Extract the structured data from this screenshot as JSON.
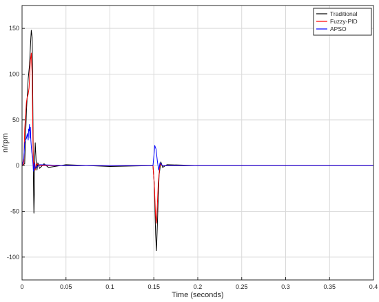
{
  "chart_data": {
    "type": "line",
    "title": "",
    "xlabel": "Time (seconds)",
    "ylabel": "n/rpm",
    "xlim": [
      0,
      0.4
    ],
    "ylim": [
      -125,
      175
    ],
    "xticks": [
      0,
      0.05,
      0.1,
      0.15,
      0.2,
      0.25,
      0.3,
      0.35,
      0.4
    ],
    "xtick_labels": [
      "0",
      "0.05",
      "0.1",
      "0.15",
      "0.2",
      "0.25",
      "0.3",
      "0.35",
      "0.4"
    ],
    "yticks": [
      -100,
      -50,
      0,
      50,
      100,
      150
    ],
    "ytick_labels": [
      "-100",
      "-50",
      "0",
      "50",
      "100",
      "150"
    ],
    "grid": true,
    "legend_position": "top-right",
    "series": [
      {
        "name": "Traditional",
        "color": "#000000",
        "points": [
          [
            0,
            0
          ],
          [
            0.003,
            2
          ],
          [
            0.005,
            60
          ],
          [
            0.007,
            95
          ],
          [
            0.0085,
            110
          ],
          [
            0.0095,
            130
          ],
          [
            0.0105,
            148
          ],
          [
            0.0115,
            140
          ],
          [
            0.012,
            100
          ],
          [
            0.0125,
            40
          ],
          [
            0.013,
            -20
          ],
          [
            0.0135,
            -52
          ],
          [
            0.014,
            -30
          ],
          [
            0.0145,
            10
          ],
          [
            0.015,
            25
          ],
          [
            0.016,
            5
          ],
          [
            0.017,
            -5
          ],
          [
            0.018,
            3
          ],
          [
            0.02,
            -3
          ],
          [
            0.025,
            2
          ],
          [
            0.03,
            -2
          ],
          [
            0.05,
            1
          ],
          [
            0.1,
            -1
          ],
          [
            0.149,
            0
          ],
          [
            0.1505,
            -20
          ],
          [
            0.152,
            -75
          ],
          [
            0.153,
            -93
          ],
          [
            0.1545,
            -50
          ],
          [
            0.156,
            -10
          ],
          [
            0.158,
            4
          ],
          [
            0.16,
            -2
          ],
          [
            0.165,
            1
          ],
          [
            0.2,
            0
          ],
          [
            0.25,
            0
          ],
          [
            0.3,
            0
          ],
          [
            0.4,
            0
          ]
        ]
      },
      {
        "name": "Fuzzy-PID",
        "color": "#ff0000",
        "points": [
          [
            0,
            0
          ],
          [
            0.002,
            2
          ],
          [
            0.003,
            40
          ],
          [
            0.005,
            70
          ],
          [
            0.006,
            75
          ],
          [
            0.007,
            78
          ],
          [
            0.008,
            85
          ],
          [
            0.009,
            105
          ],
          [
            0.0095,
            115
          ],
          [
            0.0105,
            123
          ],
          [
            0.011,
            110
          ],
          [
            0.0115,
            100
          ],
          [
            0.012,
            60
          ],
          [
            0.0125,
            20
          ],
          [
            0.013,
            -2
          ],
          [
            0.014,
            4
          ],
          [
            0.015,
            -5
          ],
          [
            0.016,
            2
          ],
          [
            0.02,
            0
          ],
          [
            0.05,
            0
          ],
          [
            0.149,
            0
          ],
          [
            0.1505,
            -20
          ],
          [
            0.152,
            -55
          ],
          [
            0.153,
            -63
          ],
          [
            0.155,
            -20
          ],
          [
            0.157,
            2
          ],
          [
            0.16,
            0
          ],
          [
            0.2,
            0
          ],
          [
            0.3,
            0
          ],
          [
            0.4,
            0
          ]
        ]
      },
      {
        "name": "APSO",
        "color": "#0000ff",
        "points": [
          [
            0,
            0
          ],
          [
            0.002,
            8
          ],
          [
            0.003,
            25
          ],
          [
            0.005,
            30
          ],
          [
            0.006,
            35
          ],
          [
            0.007,
            28
          ],
          [
            0.0075,
            40
          ],
          [
            0.008,
            38
          ],
          [
            0.0085,
            45
          ],
          [
            0.009,
            30
          ],
          [
            0.0095,
            42
          ],
          [
            0.01,
            28
          ],
          [
            0.011,
            15
          ],
          [
            0.012,
            8
          ],
          [
            0.013,
            -6
          ],
          [
            0.014,
            3
          ],
          [
            0.015,
            -3
          ],
          [
            0.02,
            1
          ],
          [
            0.05,
            0
          ],
          [
            0.149,
            0
          ],
          [
            0.1505,
            15
          ],
          [
            0.151,
            22
          ],
          [
            0.1525,
            18
          ],
          [
            0.154,
            5
          ],
          [
            0.1555,
            -5
          ],
          [
            0.157,
            3
          ],
          [
            0.16,
            0
          ],
          [
            0.2,
            0
          ],
          [
            0.3,
            0
          ],
          [
            0.4,
            0
          ]
        ]
      }
    ]
  }
}
